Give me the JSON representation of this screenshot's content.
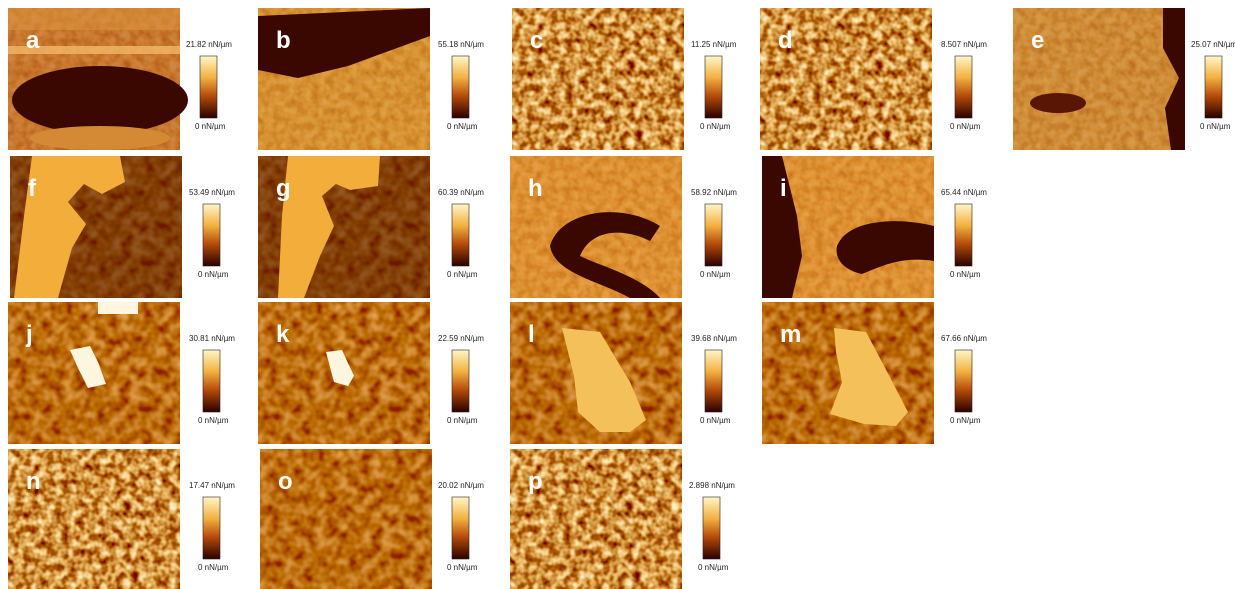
{
  "panels": [
    {
      "label": "a",
      "max": "21.82 nN/µm",
      "min": "0 nN/µm"
    },
    {
      "label": "b",
      "max": "55.18 nN/µm",
      "min": "0 nN/µm"
    },
    {
      "label": "c",
      "max": "11.25 nN/µm",
      "min": "0 nN/µm"
    },
    {
      "label": "d",
      "max": "8.507 nN/µm",
      "min": "0 nN/µm"
    },
    {
      "label": "e",
      "max": "25.07 nN/µm",
      "min": "0 nN/µm"
    },
    {
      "label": "f",
      "max": "53.49 nN/µm",
      "min": "0 nN/µm"
    },
    {
      "label": "g",
      "max": "60.39 nN/µm",
      "min": "0 nN/µm"
    },
    {
      "label": "h",
      "max": "58.92 nN/µm",
      "min": "0 nN/µm"
    },
    {
      "label": "i",
      "max": "65.44 nN/µm",
      "min": "0 nN/µm"
    },
    {
      "label": "j",
      "max": "30.81 nN/µm",
      "min": "0 nN/µm"
    },
    {
      "label": "k",
      "max": "22.59 nN/µm",
      "min": "0 nN/µm"
    },
    {
      "label": "l",
      "max": "39.68 nN/µm",
      "min": "0 nN/µm"
    },
    {
      "label": "m",
      "max": "67.66 nN/µm",
      "min": "0 nN/µm"
    },
    {
      "label": "n",
      "max": "17.47 nN/µm",
      "min": "0 nN/µm"
    },
    {
      "label": "o",
      "max": "20.02 nN/µm",
      "min": "0 nN/µm"
    },
    {
      "label": "p",
      "max": "2.898 nN/µm",
      "min": "0 nN/µm"
    }
  ]
}
